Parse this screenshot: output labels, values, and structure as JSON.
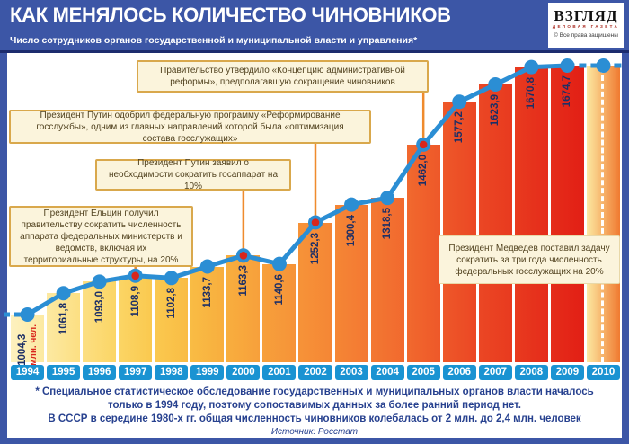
{
  "header": {
    "title": "КАК МЕНЯЛОСЬ КОЛИЧЕСТВО ЧИНОВНИКОВ",
    "subtitle": "Число сотрудников органов государственной и муниципальной власти и управления*",
    "logo": {
      "name": "ВЗГЛЯД",
      "tagline": "ДЕЛОВАЯ ГАЗЕТА",
      "copyright": "© Все права защищены"
    }
  },
  "chart_data": {
    "type": "area",
    "title": "Число сотрудников органов государственной и муниципальной власти и управления",
    "unit_label": "млн. чел.",
    "categories": [
      1994,
      1995,
      1996,
      1997,
      1998,
      1999,
      2000,
      2001,
      2002,
      2003,
      2004,
      2005,
      2006,
      2007,
      2008,
      2009,
      2010
    ],
    "values": [
      1004.3,
      1061.8,
      1093.0,
      1108.9,
      1102.8,
      1133.7,
      1163.3,
      1140.6,
      1252.3,
      1300.4,
      1318.5,
      1462.0,
      1577.2,
      1623.9,
      1670.8,
      1674.7,
      null
    ],
    "value_labels": [
      "1004,3",
      "1061,8",
      "1093,0",
      "1108,9",
      "1102,8",
      "1133,7",
      "1163,3",
      "1140,6",
      "1252,3",
      "1300,4",
      "1318,5",
      "1462,0",
      "1577,2",
      "1623,9",
      "1670,8",
      "1674,7",
      ""
    ],
    "highlighted_years": [
      1997,
      2000,
      2002,
      2005
    ],
    "projected_year": 2010,
    "ylim": [
      876,
      1760
    ],
    "grid": false,
    "legend": "none",
    "line_color": "#2b8ed4",
    "highlight_dot_color": "#d9261c",
    "connector_color": "#ef8b2d",
    "year_box_color": "#1a93d2",
    "column_colors": [
      [
        "#fdf1bf",
        "#fce9a2"
      ],
      [
        "#fce9a2",
        "#fcdf82"
      ],
      [
        "#fcdf82",
        "#fbd565"
      ],
      [
        "#fbd565",
        "#fac94f"
      ],
      [
        "#fac94f",
        "#f9bc44"
      ],
      [
        "#f9bc44",
        "#f8ae3e"
      ],
      [
        "#f8ae3e",
        "#f7a03b"
      ],
      [
        "#f7a03b",
        "#f69338"
      ],
      [
        "#f69338",
        "#f58635"
      ],
      [
        "#f58635",
        "#f37832"
      ],
      [
        "#f37832",
        "#f1692e"
      ],
      [
        "#f1692e",
        "#ee5829"
      ],
      [
        "#ee5829",
        "#eb4724"
      ],
      [
        "#eb4724",
        "#e83a1f"
      ],
      [
        "#e83a1f",
        "#e52c1a"
      ],
      [
        "#e52c1a",
        "#e21f15"
      ],
      [
        "#fce9a2",
        "#f07a30"
      ]
    ]
  },
  "annotations": [
    {
      "id": "concept",
      "text": "Правительство утвердило «Концепцию административной реформы», предполагавшую сокращение чиновников",
      "connects_to_year": 2005
    },
    {
      "id": "program",
      "text": "Президент Путин одобрил федеральную программу «Реформирование госслужбы», одним из главных направлений которой была «оптимизация состава госслужащих»",
      "connects_to_year": 2002
    },
    {
      "id": "putin10",
      "text": "Президент Путин заявил о необходимости сократить госаппарат на 10%",
      "connects_to_year": 2000
    },
    {
      "id": "yeltsin",
      "text": "Президент Ельцин получил правительству сократить численность аппарата федеральных министерств и ведомств, включая их территориальные структуры, на 20%",
      "connects_to_year": 1997
    },
    {
      "id": "medvedev",
      "text": "Президент Медведев поставил задачу сократить за три года численность федеральных госслужащих на 20%",
      "connects_to_year": null
    }
  ],
  "footer": {
    "note1": "* Специальное статистическое обследование государственных и муниципальных органов власти началось только в 1994 году, поэтому сопоставимых данных за более ранний период нет.",
    "note2": "В СССР в середине 1980-х гг. общая численность чиновников колебалась от 2 млн. до 2,4 млн. человек",
    "source": "Источник: Росстат"
  }
}
